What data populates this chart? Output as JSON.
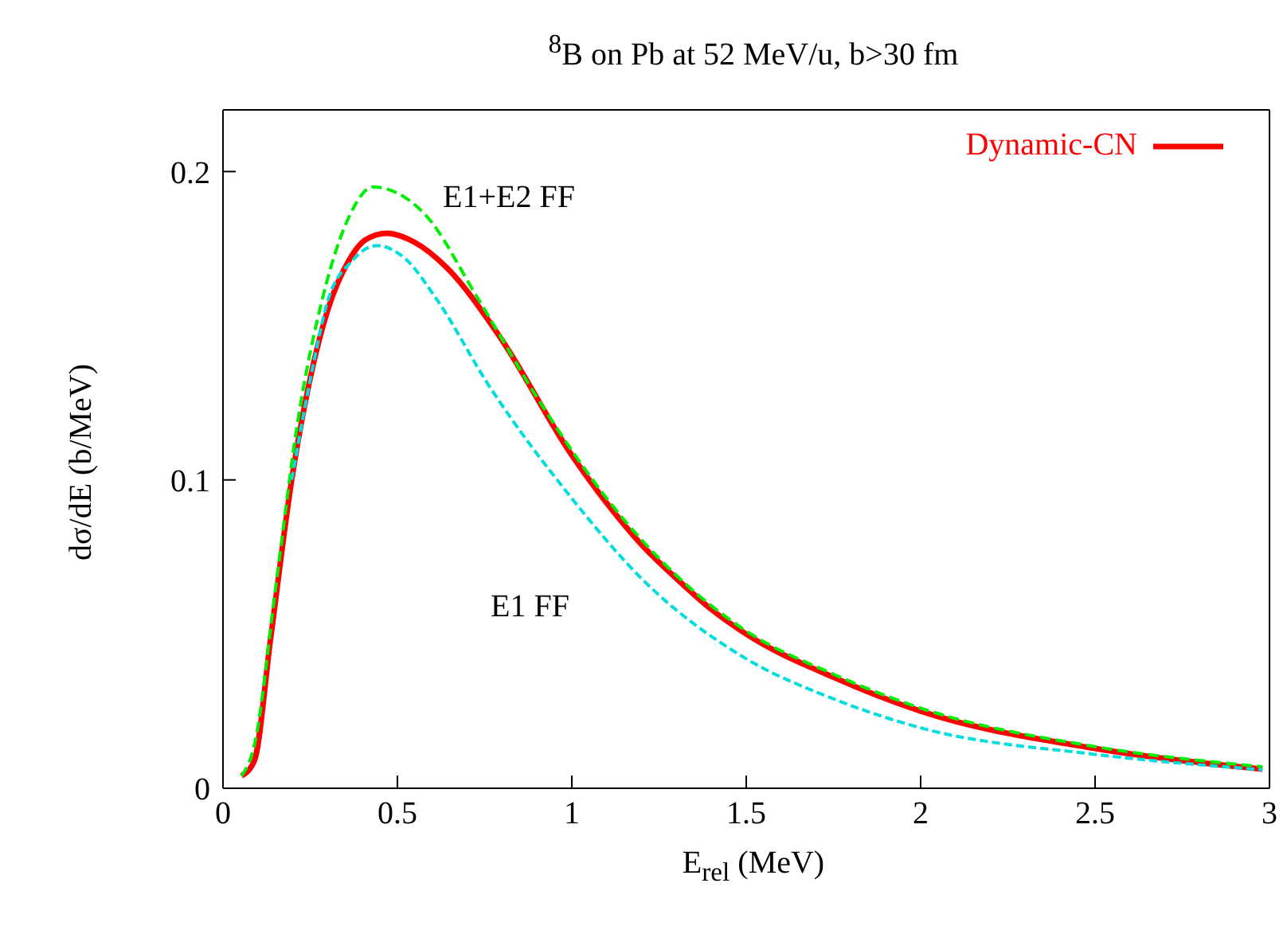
{
  "chart_data": {
    "type": "line",
    "title": "$^{8}$B on Pb at 52 MeV/u, b>30 fm",
    "xlabel": "E$_{rel}$ (MeV)",
    "ylabel": "dσ/dE (b/MeV)",
    "xlim": [
      0,
      3
    ],
    "xticks": [
      0,
      0.5,
      1,
      1.5,
      2,
      2.5,
      3
    ],
    "ylim": [
      0,
      0.22
    ],
    "yticks": [
      0,
      0.1,
      0.2
    ],
    "grid": false,
    "legend": "top right",
    "marker": "none",
    "annotations": [
      "E1+E2 FF",
      "E1 FF"
    ],
    "series": [
      {
        "color": "#00ee00",
        "line_style": "dashed",
        "x": [
          0.053,
          0.09,
          0.152,
          0.213,
          0.29,
          0.36,
          0.43,
          0.5,
          0.58,
          0.73,
          0.91,
          1.1,
          1.3,
          1.5,
          1.75,
          2.0,
          2.5,
          2.98
        ],
        "values": [
          0.004,
          0.014,
          0.066,
          0.118,
          0.161,
          0.185,
          0.195,
          0.193,
          0.186,
          0.159,
          0.125,
          0.094,
          0.069,
          0.051,
          0.037,
          0.026,
          0.0135,
          0.007
        ]
      },
      {
        "color": "#00dddd",
        "line_style": "dashed",
        "x": [
          0.197,
          0.26,
          0.3,
          0.37,
          0.44,
          0.52,
          0.61,
          0.76,
          1.0,
          1.2,
          1.5,
          1.75,
          2.0,
          2.5,
          2.98
        ],
        "values": [
          0.1,
          0.138,
          0.158,
          0.171,
          0.176,
          0.172,
          0.159,
          0.131,
          0.094,
          0.068,
          0.042,
          0.029,
          0.0196,
          0.011,
          0.006
        ]
      },
      {
        "name": "Dynamic-CN",
        "color": "#ff0000",
        "line_style": "solid",
        "x": [
          0.053,
          0.09,
          0.137,
          0.197,
          0.26,
          0.3,
          0.36,
          0.41,
          0.47,
          0.55,
          0.64,
          0.79,
          1.0,
          1.1,
          1.2,
          1.3,
          1.4,
          1.5,
          1.75,
          2.0,
          2.5,
          2.98
        ],
        "values": [
          0.004,
          0.009,
          0.049,
          0.1,
          0.138,
          0.155,
          0.171,
          0.178,
          0.18,
          0.177,
          0.169,
          0.147,
          0.108,
          0.0925,
          0.079,
          0.068,
          0.058,
          0.05,
          0.036,
          0.025,
          0.0129,
          0.0062
        ]
      }
    ]
  }
}
